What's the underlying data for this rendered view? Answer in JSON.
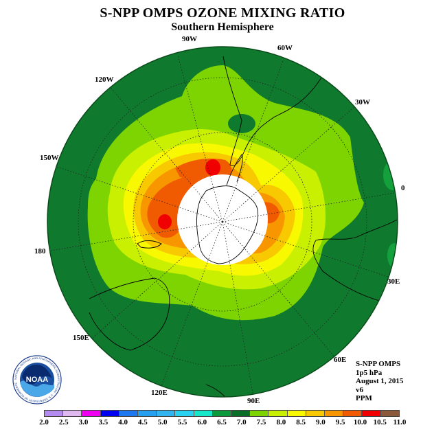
{
  "title": "S-NPP OMPS OZONE MIXING RATIO",
  "subtitle": "Southern Hemisphere",
  "longitude_labels": [
    "90W",
    "60W",
    "30W",
    "0",
    "30E",
    "60E",
    "90E",
    "120E",
    "150E",
    "180",
    "150W",
    "120W"
  ],
  "info": {
    "instrument": "S-NPP OMPS",
    "level": "1p5 hPa",
    "date": "August 1, 2015",
    "version": "v6",
    "units": "PPM"
  },
  "logo": {
    "text": "NOAA",
    "ring_text": "NATIONAL OCEANIC AND ATMOSPHERIC ADMINISTRATION · U.S. DEPARTMENT OF COMMERCE"
  },
  "colorbar": {
    "ticks": [
      "2.0",
      "2.5",
      "3.0",
      "3.5",
      "4.0",
      "4.5",
      "5.0",
      "5.5",
      "6.0",
      "6.5",
      "7.0",
      "7.5",
      "8.0",
      "8.5",
      "9.0",
      "9.5",
      "10.0",
      "10.5",
      "11.0"
    ],
    "colors": [
      "#b48cf0",
      "#e0b8f0",
      "#f000f0",
      "#0000f0",
      "#1e78f0",
      "#28a0f0",
      "#32b4f0",
      "#28d2f0",
      "#14e8c8",
      "#0a9a3c",
      "#086e28",
      "#7ed400",
      "#c8f000",
      "#f8f800",
      "#f8c800",
      "#f89600",
      "#f05a00",
      "#f00000",
      "#8b5a3c"
    ]
  },
  "colors": {
    "outer_ocean_green": "#0f7a2e",
    "light_green": "#7ed400",
    "yellow_green": "#c8f000",
    "yellow": "#f8f800",
    "orange": "#f89600",
    "red": "#f00000",
    "polar_night": "#ffffff"
  }
}
